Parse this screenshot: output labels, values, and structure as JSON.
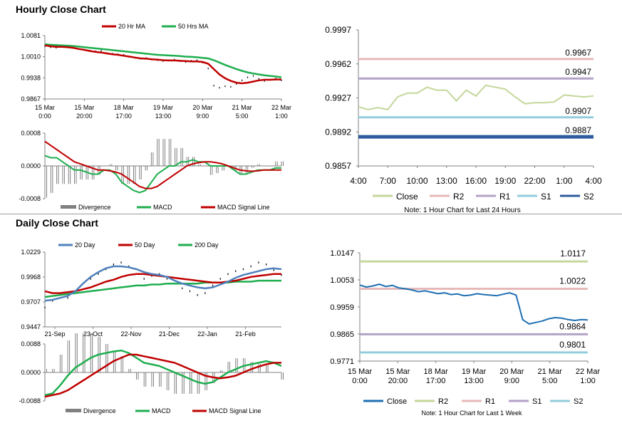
{
  "sections": {
    "hourly_title": "Hourly Close Chart",
    "daily_title": "Daily Close Chart"
  },
  "colors": {
    "red": "#c00000",
    "green": "#1fae4f",
    "blue": "#4f81bd",
    "close_light": "#c4d79b",
    "r2": "#c4d79b",
    "r1": "#e6b9b8",
    "s1_purple": "#b3a2c7",
    "s1": "#b3a2c7",
    "s2_light": "#93cddd",
    "s2_dark": "#2e5c9e",
    "close_dark": "#1f6fb2",
    "bar": "#000000",
    "divergence": "#808080"
  },
  "chart_data": [
    {
      "id": "hourly_price",
      "type": "line",
      "legend": [
        "20 Hr MA",
        "50 Hrs MA"
      ],
      "x_ticks": [
        [
          "15 Mar",
          "0:00"
        ],
        [
          "15 Mar",
          "20:00"
        ],
        [
          "18 Mar",
          "17:00"
        ],
        [
          "19 Mar",
          "13:00"
        ],
        [
          "20 Mar",
          "9:00"
        ],
        [
          "21 Mar",
          "5:00"
        ],
        [
          "22 Mar",
          "1:00"
        ]
      ],
      "y_ticks": [
        "1.0081",
        "1.0010",
        "0.9938",
        "0.9867"
      ],
      "ylim": [
        0.9867,
        1.0081
      ],
      "series": [
        {
          "name": "Close",
          "values": [
            1.0045,
            1.0042,
            1.004,
            1.0044,
            1.0046,
            1.0041,
            1.0035,
            1.0033,
            1.003,
            1.0028,
            1.003,
            1.0022,
            1.002,
            1.0018,
            1.0016,
            1.001,
            1.0006,
            1.0003,
            1.0005,
            1.0,
            0.9998,
            0.9995,
            0.9998,
            1.0,
            0.9995,
            0.9992,
            0.9996,
            0.9998,
            0.999,
            0.997,
            0.9912,
            0.9905,
            0.991,
            0.9908,
            0.9918,
            0.993,
            0.994,
            0.9945,
            0.9935,
            0.9928,
            0.9932,
            0.9936,
            0.993
          ]
        },
        {
          "name": "20 Hr MA",
          "values": [
            1.0048,
            1.0045,
            1.0043,
            1.0043,
            1.0042,
            1.004,
            1.0036,
            1.0033,
            1.0029,
            1.0026,
            1.0024,
            1.0021,
            1.0018,
            1.0016,
            1.0013,
            1.001,
            1.0007,
            1.0004,
            1.0003,
            1.0001,
            1.0,
            0.9998,
            0.9997,
            0.9997,
            0.9996,
            0.9995,
            0.9994,
            0.9994,
            0.9992,
            0.9986,
            0.9968,
            0.995,
            0.9937,
            0.9928,
            0.9922,
            0.992,
            0.9922,
            0.9926,
            0.993,
            0.9932,
            0.9932,
            0.9933,
            0.9933
          ]
        },
        {
          "name": "50 Hrs MA",
          "values": [
            1.0052,
            1.005,
            1.0049,
            1.0048,
            1.0047,
            1.0046,
            1.0044,
            1.0042,
            1.004,
            1.0038,
            1.0036,
            1.0034,
            1.0032,
            1.003,
            1.0028,
            1.0026,
            1.0024,
            1.0022,
            1.002,
            1.0018,
            1.0016,
            1.0015,
            1.0014,
            1.0013,
            1.0012,
            1.001,
            1.0009,
            1.0008,
            1.0006,
            1.0004,
            0.9998,
            0.999,
            0.9982,
            0.9975,
            0.9968,
            0.9962,
            0.9957,
            0.9953,
            0.995,
            0.9947,
            0.9945,
            0.9943,
            0.994
          ]
        }
      ]
    },
    {
      "id": "hourly_macd",
      "type": "bar",
      "legend": [
        "Divergence",
        "MACD",
        "MACD Signal Line"
      ],
      "y_ticks": [
        "0.0008",
        "0.0000",
        "-0.0008"
      ],
      "ylim": [
        -0.0008,
        0.0008
      ],
      "series": [
        {
          "name": "MACD",
          "values": [
            0.00025,
            0.0002,
            0.0002,
            0.0001,
            0.0,
            -0.0001,
            -0.0001,
            -0.00015,
            -0.0002,
            -0.0002,
            -0.0001,
            -0.0001,
            -0.0002,
            -0.0004,
            -0.0005,
            -0.0006,
            -0.00065,
            -0.0006,
            -0.0004,
            -0.0002,
            -0.0001,
            0.0,
            0.0,
            0.0001,
            0.0001,
            0.00015,
            0.0001,
            0.0001,
            0.0,
            0.0,
            0.0,
            0.0,
            -0.0001,
            -0.0002,
            -0.0002,
            -0.00015,
            -0.0001,
            -0.0001,
            -0.0001,
            -5e-05,
            -5e-05
          ]
        },
        {
          "name": "MACD Signal Line",
          "values": [
            0.0006,
            0.0005,
            0.0004,
            0.0003,
            0.0002,
            0.0001,
            5e-05,
            0.0,
            -5e-05,
            -0.0001,
            -0.0001,
            -0.00012,
            -0.00015,
            -0.0002,
            -0.0003,
            -0.0004,
            -0.0005,
            -0.00055,
            -0.00055,
            -0.0005,
            -0.0004,
            -0.0003,
            -0.0002,
            -0.0001,
            0.0,
            5e-05,
            8e-05,
            0.0001,
            0.0001,
            8e-05,
            5e-05,
            0.0,
            -5e-05,
            -0.0001,
            -0.00012,
            -0.00013,
            -0.00012,
            -0.0001,
            -0.0001,
            -0.0001,
            -0.0001
          ]
        }
      ]
    },
    {
      "id": "hourly_levels",
      "type": "line",
      "y_ticks": [
        "0.9997",
        "0.9962",
        "0.9927",
        "0.9892",
        "0.9857"
      ],
      "ylim": [
        0.9857,
        0.9997
      ],
      "x_ticks": [
        "4:00",
        "7:00",
        "10:00",
        "13:00",
        "16:00",
        "19:00",
        "22:00",
        "1:00",
        "4:00"
      ],
      "legend": [
        "Close",
        "R2",
        "R1",
        "S1",
        "S2"
      ],
      "levels": [
        {
          "name": "R2",
          "value": 0.9967,
          "label": "0.9967"
        },
        {
          "name": "R1",
          "value": 0.9947,
          "label": "0.9947"
        },
        {
          "name": "S1",
          "value": 0.9907,
          "label": "0.9907"
        },
        {
          "name": "S2",
          "value": 0.9887,
          "label": "0.9887"
        }
      ],
      "series": [
        {
          "name": "Close",
          "values": [
            0.9918,
            0.9915,
            0.9917,
            0.9915,
            0.9928,
            0.9932,
            0.9932,
            0.9938,
            0.9935,
            0.9935,
            0.9924,
            0.9935,
            0.9929,
            0.994,
            0.9938,
            0.9936,
            0.9928,
            0.9921,
            0.9922,
            0.9922,
            0.9923,
            0.993,
            0.9929,
            0.9928,
            0.9929
          ]
        }
      ],
      "note": "Note: 1 Hour Chart for Last 24 Hours"
    },
    {
      "id": "daily_price",
      "type": "line",
      "legend": [
        "20 Day",
        "50 Day",
        "200 Day"
      ],
      "x_ticks": [
        "21-Sep",
        "23-Oct",
        "22-Nov",
        "21-Dec",
        "22-Jan",
        "21-Feb"
      ],
      "y_ticks": [
        "1.0229",
        "0.9968",
        "0.9707",
        "0.9447"
      ],
      "ylim": [
        0.9447,
        1.0229
      ],
      "series": [
        {
          "name": "Close",
          "values": [
            0.965,
            0.972,
            0.978,
            0.975,
            0.982,
            0.99,
            0.995,
            1.0,
            1.005,
            1.01,
            1.012,
            1.008,
            1.0,
            0.995,
            0.998,
            1.0,
            0.995,
            0.99,
            0.985,
            0.982,
            0.978,
            0.98,
            0.988,
            0.995,
            1.0,
            1.003,
            1.005,
            1.008,
            1.012,
            1.01,
            1.004,
            0.999
          ]
        },
        {
          "name": "20 Day",
          "values": [
            0.972,
            0.973,
            0.975,
            0.977,
            0.982,
            0.99,
            0.997,
            1.002,
            1.006,
            1.008,
            1.008,
            1.007,
            1.005,
            1.002,
            1.0,
            0.999,
            0.997,
            0.993,
            0.99,
            0.988,
            0.986,
            0.985,
            0.986,
            0.989,
            0.992,
            0.996,
            0.999,
            1.001,
            1.003,
            1.005,
            1.006,
            1.005
          ]
        },
        {
          "name": "50 Day",
          "values": [
            0.982,
            0.98,
            0.98,
            0.981,
            0.982,
            0.984,
            0.986,
            0.989,
            0.992,
            0.994,
            0.997,
            0.999,
            1.0,
            1.0,
            0.999,
            0.998,
            0.997,
            0.996,
            0.995,
            0.994,
            0.993,
            0.992,
            0.991,
            0.991,
            0.992,
            0.993,
            0.995,
            0.997,
            0.998,
            0.999,
            1.0,
            1.0
          ]
        },
        {
          "name": "200 Day",
          "values": [
            0.976,
            0.977,
            0.978,
            0.979,
            0.98,
            0.981,
            0.982,
            0.983,
            0.984,
            0.985,
            0.986,
            0.987,
            0.988,
            0.988,
            0.989,
            0.989,
            0.99,
            0.99,
            0.99,
            0.99,
            0.99,
            0.991,
            0.991,
            0.991,
            0.991,
            0.992,
            0.992,
            0.992,
            0.993,
            0.993,
            0.993,
            0.993
          ]
        }
      ]
    },
    {
      "id": "daily_macd",
      "type": "bar",
      "legend": [
        "Divergence",
        "MACD",
        "MACD Signal Line"
      ],
      "y_ticks": [
        "0.0088",
        "0.0000",
        "-0.0088"
      ],
      "ylim": [
        -0.0088,
        0.0088
      ],
      "series": [
        {
          "name": "MACD",
          "values": [
            -0.007,
            -0.0065,
            -0.004,
            -0.001,
            0.0015,
            0.003,
            0.0045,
            0.0055,
            0.006,
            0.0065,
            0.0068,
            0.006,
            0.0045,
            0.003,
            0.0025,
            0.002,
            0.001,
            0.0,
            -0.001,
            -0.002,
            -0.003,
            -0.0035,
            -0.003,
            -0.0015,
            0.0,
            0.001,
            0.002,
            0.0025,
            0.003,
            0.0035,
            0.003,
            0.002
          ]
        },
        {
          "name": "MACD Signal Line",
          "values": [
            -0.0075,
            -0.007,
            -0.0065,
            -0.0055,
            -0.004,
            -0.0025,
            -0.001,
            0.0005,
            0.002,
            0.0035,
            0.0045,
            0.0055,
            0.0055,
            0.005,
            0.0045,
            0.004,
            0.0035,
            0.003,
            0.002,
            0.001,
            0.0,
            -0.001,
            -0.0015,
            -0.0018,
            -0.0015,
            -0.001,
            0.0,
            0.001,
            0.0018,
            0.0025,
            0.003,
            0.003
          ]
        }
      ]
    },
    {
      "id": "daily_levels",
      "type": "line",
      "y_ticks": [
        "1.0147",
        "1.0053",
        "0.9959",
        "0.9865",
        "0.9771"
      ],
      "ylim": [
        0.9771,
        1.0147
      ],
      "x_ticks": [
        [
          "15 Mar",
          "0:00"
        ],
        [
          "15 Mar",
          "20:00"
        ],
        [
          "18 Mar",
          "17:00"
        ],
        [
          "19 Mar",
          "13:00"
        ],
        [
          "20 Mar",
          "9:00"
        ],
        [
          "21 Mar",
          "5:00"
        ],
        [
          "22 Mar",
          "1:00"
        ]
      ],
      "legend": [
        "Close",
        "R2",
        "R1",
        "S1",
        "S2"
      ],
      "levels": [
        {
          "name": "R2",
          "value": 1.0117,
          "label": "1.0117"
        },
        {
          "name": "R1",
          "value": 1.0022,
          "label": "1.0022"
        },
        {
          "name": "S1",
          "value": 0.9864,
          "label": "0.9864"
        },
        {
          "name": "S2",
          "value": 0.9801,
          "label": "0.9801"
        }
      ],
      "series": [
        {
          "name": "Close",
          "values": [
            1.0035,
            1.0028,
            1.0032,
            1.0038,
            1.003,
            1.0034,
            1.0025,
            1.0022,
            1.0018,
            1.0012,
            1.0015,
            1.001,
            1.0005,
            1.0008,
            1.0002,
            1.0004,
            0.9998,
            1.0,
            1.0005,
            1.0002,
            1.0,
            0.9998,
            1.0003,
            1.0008,
            1.0,
            0.9915,
            0.99,
            0.9905,
            0.991,
            0.9918,
            0.9922,
            0.992,
            0.9915,
            0.9912,
            0.9915,
            0.9914
          ]
        }
      ],
      "note": "Note: 1 Hour Chart for Last 1 Week"
    }
  ]
}
